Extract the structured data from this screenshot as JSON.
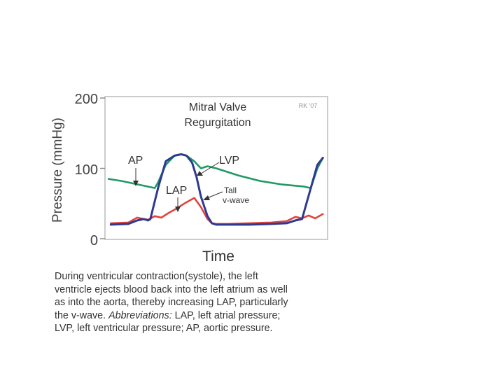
{
  "chart_data": {
    "type": "line",
    "title_line1": "Mitral Valve",
    "title_line2": "Regurgitation",
    "credit": "RK '07",
    "xlabel": "Time",
    "ylabel": "Pressure (mmHg)",
    "ylim": [
      0,
      200
    ],
    "yticks": [
      "0",
      "100",
      "200"
    ],
    "xlim": [
      0,
      1
    ],
    "series": [
      {
        "name": "AP",
        "color": "#1f9a63",
        "x": [
          0.01,
          0.07,
          0.13,
          0.19,
          0.22,
          0.235,
          0.27,
          0.31,
          0.34,
          0.365,
          0.4,
          0.43,
          0.46,
          0.5,
          0.6,
          0.7,
          0.8,
          0.9,
          0.93,
          0.96,
          0.985
        ],
        "y": [
          85,
          82,
          78,
          74,
          72,
          80,
          105,
          118,
          120,
          118,
          110,
          100,
          103,
          100,
          90,
          82,
          77,
          74,
          72,
          100,
          115
        ]
      },
      {
        "name": "LVP",
        "color": "#2e3a8f",
        "x": [
          0.02,
          0.1,
          0.14,
          0.17,
          0.19,
          0.2,
          0.235,
          0.27,
          0.31,
          0.34,
          0.365,
          0.39,
          0.41,
          0.43,
          0.46,
          0.48,
          0.5,
          0.55,
          0.65,
          0.75,
          0.82,
          0.86,
          0.89,
          0.93,
          0.96,
          0.985
        ],
        "y": [
          20,
          21,
          26,
          28,
          26,
          28,
          72,
          110,
          118,
          120,
          118,
          108,
          88,
          60,
          32,
          22,
          20,
          20,
          20,
          21,
          22,
          26,
          28,
          72,
          105,
          115
        ]
      },
      {
        "name": "LAP",
        "color": "#e0433f",
        "x": [
          0.02,
          0.1,
          0.14,
          0.17,
          0.19,
          0.22,
          0.25,
          0.28,
          0.32,
          0.36,
          0.4,
          0.43,
          0.46,
          0.48,
          0.5,
          0.55,
          0.65,
          0.75,
          0.82,
          0.86,
          0.89,
          0.92,
          0.95,
          0.985
        ],
        "y": [
          22,
          23,
          30,
          28,
          27,
          32,
          30,
          36,
          43,
          51,
          58,
          45,
          28,
          22,
          21,
          21,
          22,
          23,
          25,
          31,
          29,
          33,
          29,
          35
        ]
      }
    ],
    "annotations": [
      "AP",
      "LVP",
      "LAP",
      "Tall",
      "v-wave"
    ]
  },
  "caption": {
    "line1": "During ventricular contraction(systole), the left",
    "line2": "ventricle ejects blood back into the left atrium as well",
    "line3": "as into the aorta, thereby increasing LAP, particularly",
    "line4_a": "the v-wave.  ",
    "line4_b": "Abbreviations:",
    "line4_c": " LAP, left atrial pressure;",
    "line5": "LVP, left ventricular pressure; AP, aortic pressure."
  }
}
